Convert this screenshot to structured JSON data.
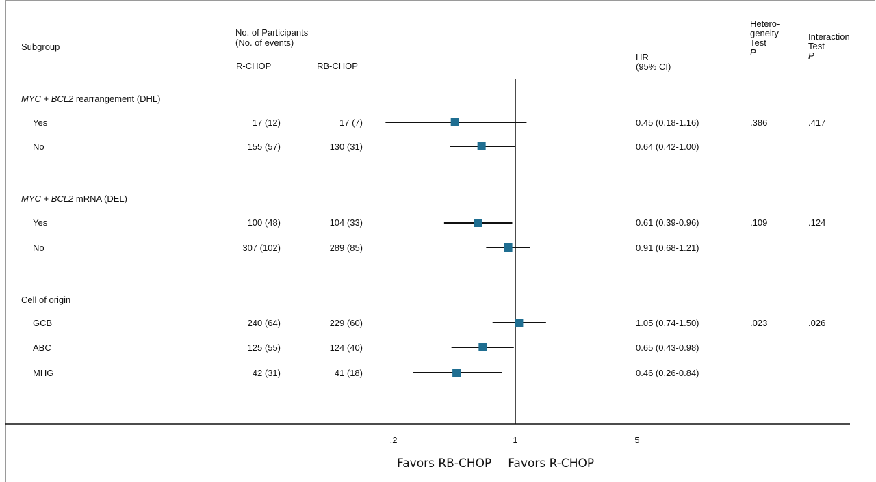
{
  "header": {
    "subgroup": "Subgroup",
    "participants_line1": "No. of Participants",
    "participants_line2": "(No. of events)",
    "arm1": "R-CHOP",
    "arm2": "RB-CHOP",
    "hr_line1": "HR",
    "hr_line2": "(95% CI)",
    "het_line1": "Hetero-",
    "het_line2": "geneity",
    "het_line3": "Test",
    "het_line4": "P",
    "int_line1": "Interaction",
    "int_line2": "Test",
    "int_line3": "P"
  },
  "groups": [
    {
      "title_italic1": "MYC",
      "title_plain1": " + ",
      "title_italic2": "BCL2",
      "title_plain2": " rearrangement (DHL)",
      "heterogeneity_p": ".386",
      "interaction_p": ".417"
    },
    {
      "title_italic1": "MYC",
      "title_plain1": " + ",
      "title_italic2": "BCL2",
      "title_plain2": " mRNA (DEL)",
      "heterogeneity_p": ".109",
      "interaction_p": ".124"
    },
    {
      "title_italic1": "",
      "title_plain1": "Cell of origin",
      "title_italic2": "",
      "title_plain2": "",
      "heterogeneity_p": ".023",
      "interaction_p": ".026"
    }
  ],
  "chart_data": {
    "type": "forest",
    "x_scale": "log",
    "xlim": [
      0.16,
      6.5
    ],
    "reference_line": 1,
    "x_ticks": [
      {
        "value": 0.2,
        "label": ".2"
      },
      {
        "value": 1,
        "label": "1"
      },
      {
        "value": 5,
        "label": "5"
      }
    ],
    "xlabel_left": "Favors RB-CHOP",
    "xlabel_right": "Favors R-CHOP",
    "marker_color": "#1f6e91",
    "rows": [
      {
        "group": 0,
        "label": "Yes",
        "r_chop": "17 (12)",
        "rb_chop": "17 (7)",
        "hr": 0.45,
        "lo": 0.18,
        "hi": 1.16,
        "hr_text": "0.45 (0.18-1.16)"
      },
      {
        "group": 0,
        "label": "No",
        "r_chop": "155 (57)",
        "rb_chop": "130 (31)",
        "hr": 0.64,
        "lo": 0.42,
        "hi": 1.0,
        "hr_text": "0.64 (0.42-1.00)"
      },
      {
        "group": 1,
        "label": "Yes",
        "r_chop": "100 (48)",
        "rb_chop": "104 (33)",
        "hr": 0.61,
        "lo": 0.39,
        "hi": 0.96,
        "hr_text": "0.61 (0.39-0.96)"
      },
      {
        "group": 1,
        "label": "No",
        "r_chop": "307 (102)",
        "rb_chop": "289 (85)",
        "hr": 0.91,
        "lo": 0.68,
        "hi": 1.21,
        "hr_text": "0.91 (0.68-1.21)"
      },
      {
        "group": 2,
        "label": "GCB",
        "r_chop": "240 (64)",
        "rb_chop": "229 (60)",
        "hr": 1.05,
        "lo": 0.74,
        "hi": 1.5,
        "hr_text": "1.05 (0.74-1.50)"
      },
      {
        "group": 2,
        "label": "ABC",
        "r_chop": "125 (55)",
        "rb_chop": "124 (40)",
        "hr": 0.65,
        "lo": 0.43,
        "hi": 0.98,
        "hr_text": "0.65 (0.43-0.98)"
      },
      {
        "group": 2,
        "label": "MHG",
        "r_chop": "42 (31)",
        "rb_chop": "41 (18)",
        "hr": 0.46,
        "lo": 0.26,
        "hi": 0.84,
        "hr_text": "0.46 (0.26-0.84)"
      }
    ]
  }
}
